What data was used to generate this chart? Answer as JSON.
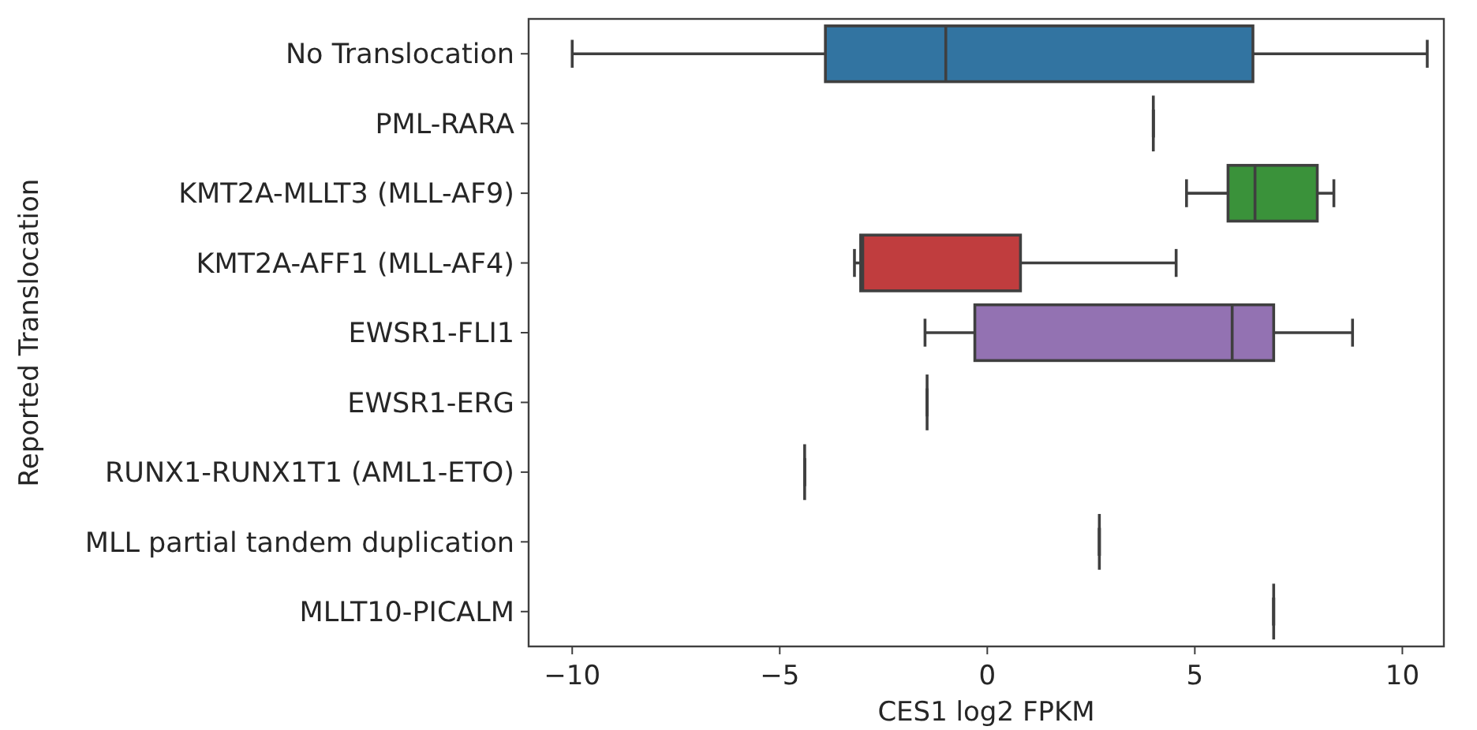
{
  "chart_data": {
    "type": "box",
    "orientation": "horizontal",
    "xlabel": "CES1 log2 FPKM",
    "ylabel": "Reported Translocation",
    "categories": [
      "No Translocation",
      "PML-RARA",
      "KMT2A-MLLT3 (MLL-AF9)",
      "KMT2A-AFF1 (MLL-AF4)",
      "EWSR1-FLI1",
      "EWSR1-ERG",
      "RUNX1-RUNX1T1 (AML1-ETO)",
      "MLL partial tandem duplication",
      "MLLT10-PICALM"
    ],
    "boxes": [
      {
        "low": -10.0,
        "q1": -3.9,
        "median": -1.0,
        "q3": 6.4,
        "high": 10.6
      },
      {
        "low": 4.0,
        "q1": 4.0,
        "median": 4.0,
        "q3": 4.0,
        "high": 4.0
      },
      {
        "low": 4.8,
        "q1": 5.8,
        "median": 6.45,
        "q3": 7.95,
        "high": 8.35
      },
      {
        "low": -3.2,
        "q1": -3.05,
        "median": -3.0,
        "q3": 0.8,
        "high": 4.55
      },
      {
        "low": -1.5,
        "q1": -0.3,
        "median": 5.9,
        "q3": 6.9,
        "high": 8.8
      },
      {
        "low": -1.45,
        "q1": -1.45,
        "median": -1.45,
        "q3": -1.45,
        "high": -1.45
      },
      {
        "low": -4.4,
        "q1": -4.4,
        "median": -4.4,
        "q3": -4.4,
        "high": -4.4
      },
      {
        "low": 2.7,
        "q1": 2.7,
        "median": 2.7,
        "q3": 2.7,
        "high": 2.7
      },
      {
        "low": 6.9,
        "q1": 6.9,
        "median": 6.9,
        "q3": 6.9,
        "high": 6.9
      }
    ],
    "colors": [
      "#3274a1",
      "#3f3f3f",
      "#3a923a",
      "#c03d3e",
      "#9372b2",
      "#3f3f3f",
      "#3f3f3f",
      "#3f3f3f",
      "#3f3f3f"
    ],
    "xlim": [
      -11.05,
      11.0
    ],
    "xticks": [
      {
        "value": -10,
        "label": "−10"
      },
      {
        "value": -5,
        "label": "−5"
      },
      0,
      5,
      10
    ]
  }
}
